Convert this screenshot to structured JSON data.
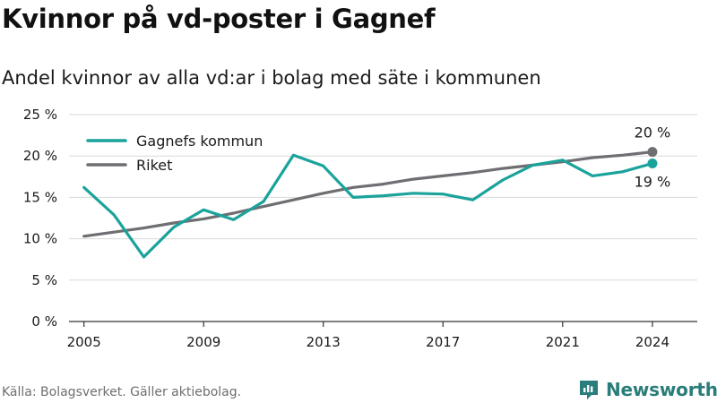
{
  "title": "Kvinnor på vd-poster i Gagnef",
  "subtitle": "Andel kvinnor av alla vd:ar i bolag med säte i kommunen",
  "source": "Källa: Bolagsverket. Gäller aktiebolag.",
  "brand": "Newsworthy",
  "colors": {
    "series_kommun": "#1aa39b",
    "series_riket": "#6e6e73",
    "grid": "#d9d9d9",
    "axis": "#333333",
    "brand": "#2a7d7a"
  },
  "chart_data": {
    "type": "line",
    "x": [
      2005,
      2006,
      2007,
      2008,
      2009,
      2010,
      2011,
      2012,
      2013,
      2014,
      2015,
      2016,
      2017,
      2018,
      2019,
      2020,
      2021,
      2022,
      2023,
      2024
    ],
    "series": [
      {
        "name": "Gagnefs kommun",
        "values": [
          16.2,
          12.9,
          7.8,
          11.4,
          13.5,
          12.3,
          14.5,
          20.1,
          18.8,
          15.0,
          15.2,
          15.5,
          15.4,
          14.7,
          17.1,
          18.9,
          19.5,
          17.6,
          18.1,
          19.1
        ],
        "end_label": "19 %"
      },
      {
        "name": "Riket",
        "values": [
          10.3,
          10.8,
          11.3,
          11.9,
          12.4,
          13.1,
          13.9,
          14.7,
          15.5,
          16.2,
          16.6,
          17.2,
          17.6,
          18.0,
          18.5,
          18.9,
          19.3,
          19.8,
          20.1,
          20.5
        ],
        "end_label": "20 %"
      }
    ],
    "ylim": [
      0,
      25
    ],
    "yticks": [
      0,
      5,
      10,
      15,
      20,
      25
    ],
    "ytick_labels": [
      "0 %",
      "5 %",
      "10 %",
      "15 %",
      "20 %",
      "25 %"
    ],
    "xticks": [
      2005,
      2009,
      2013,
      2017,
      2021,
      2024
    ],
    "xtick_labels": [
      "2005",
      "2009",
      "2013",
      "2017",
      "2021",
      "2024"
    ],
    "xlim": [
      2004.5,
      2025.5
    ],
    "grid": true,
    "legend_position": "top-left"
  }
}
